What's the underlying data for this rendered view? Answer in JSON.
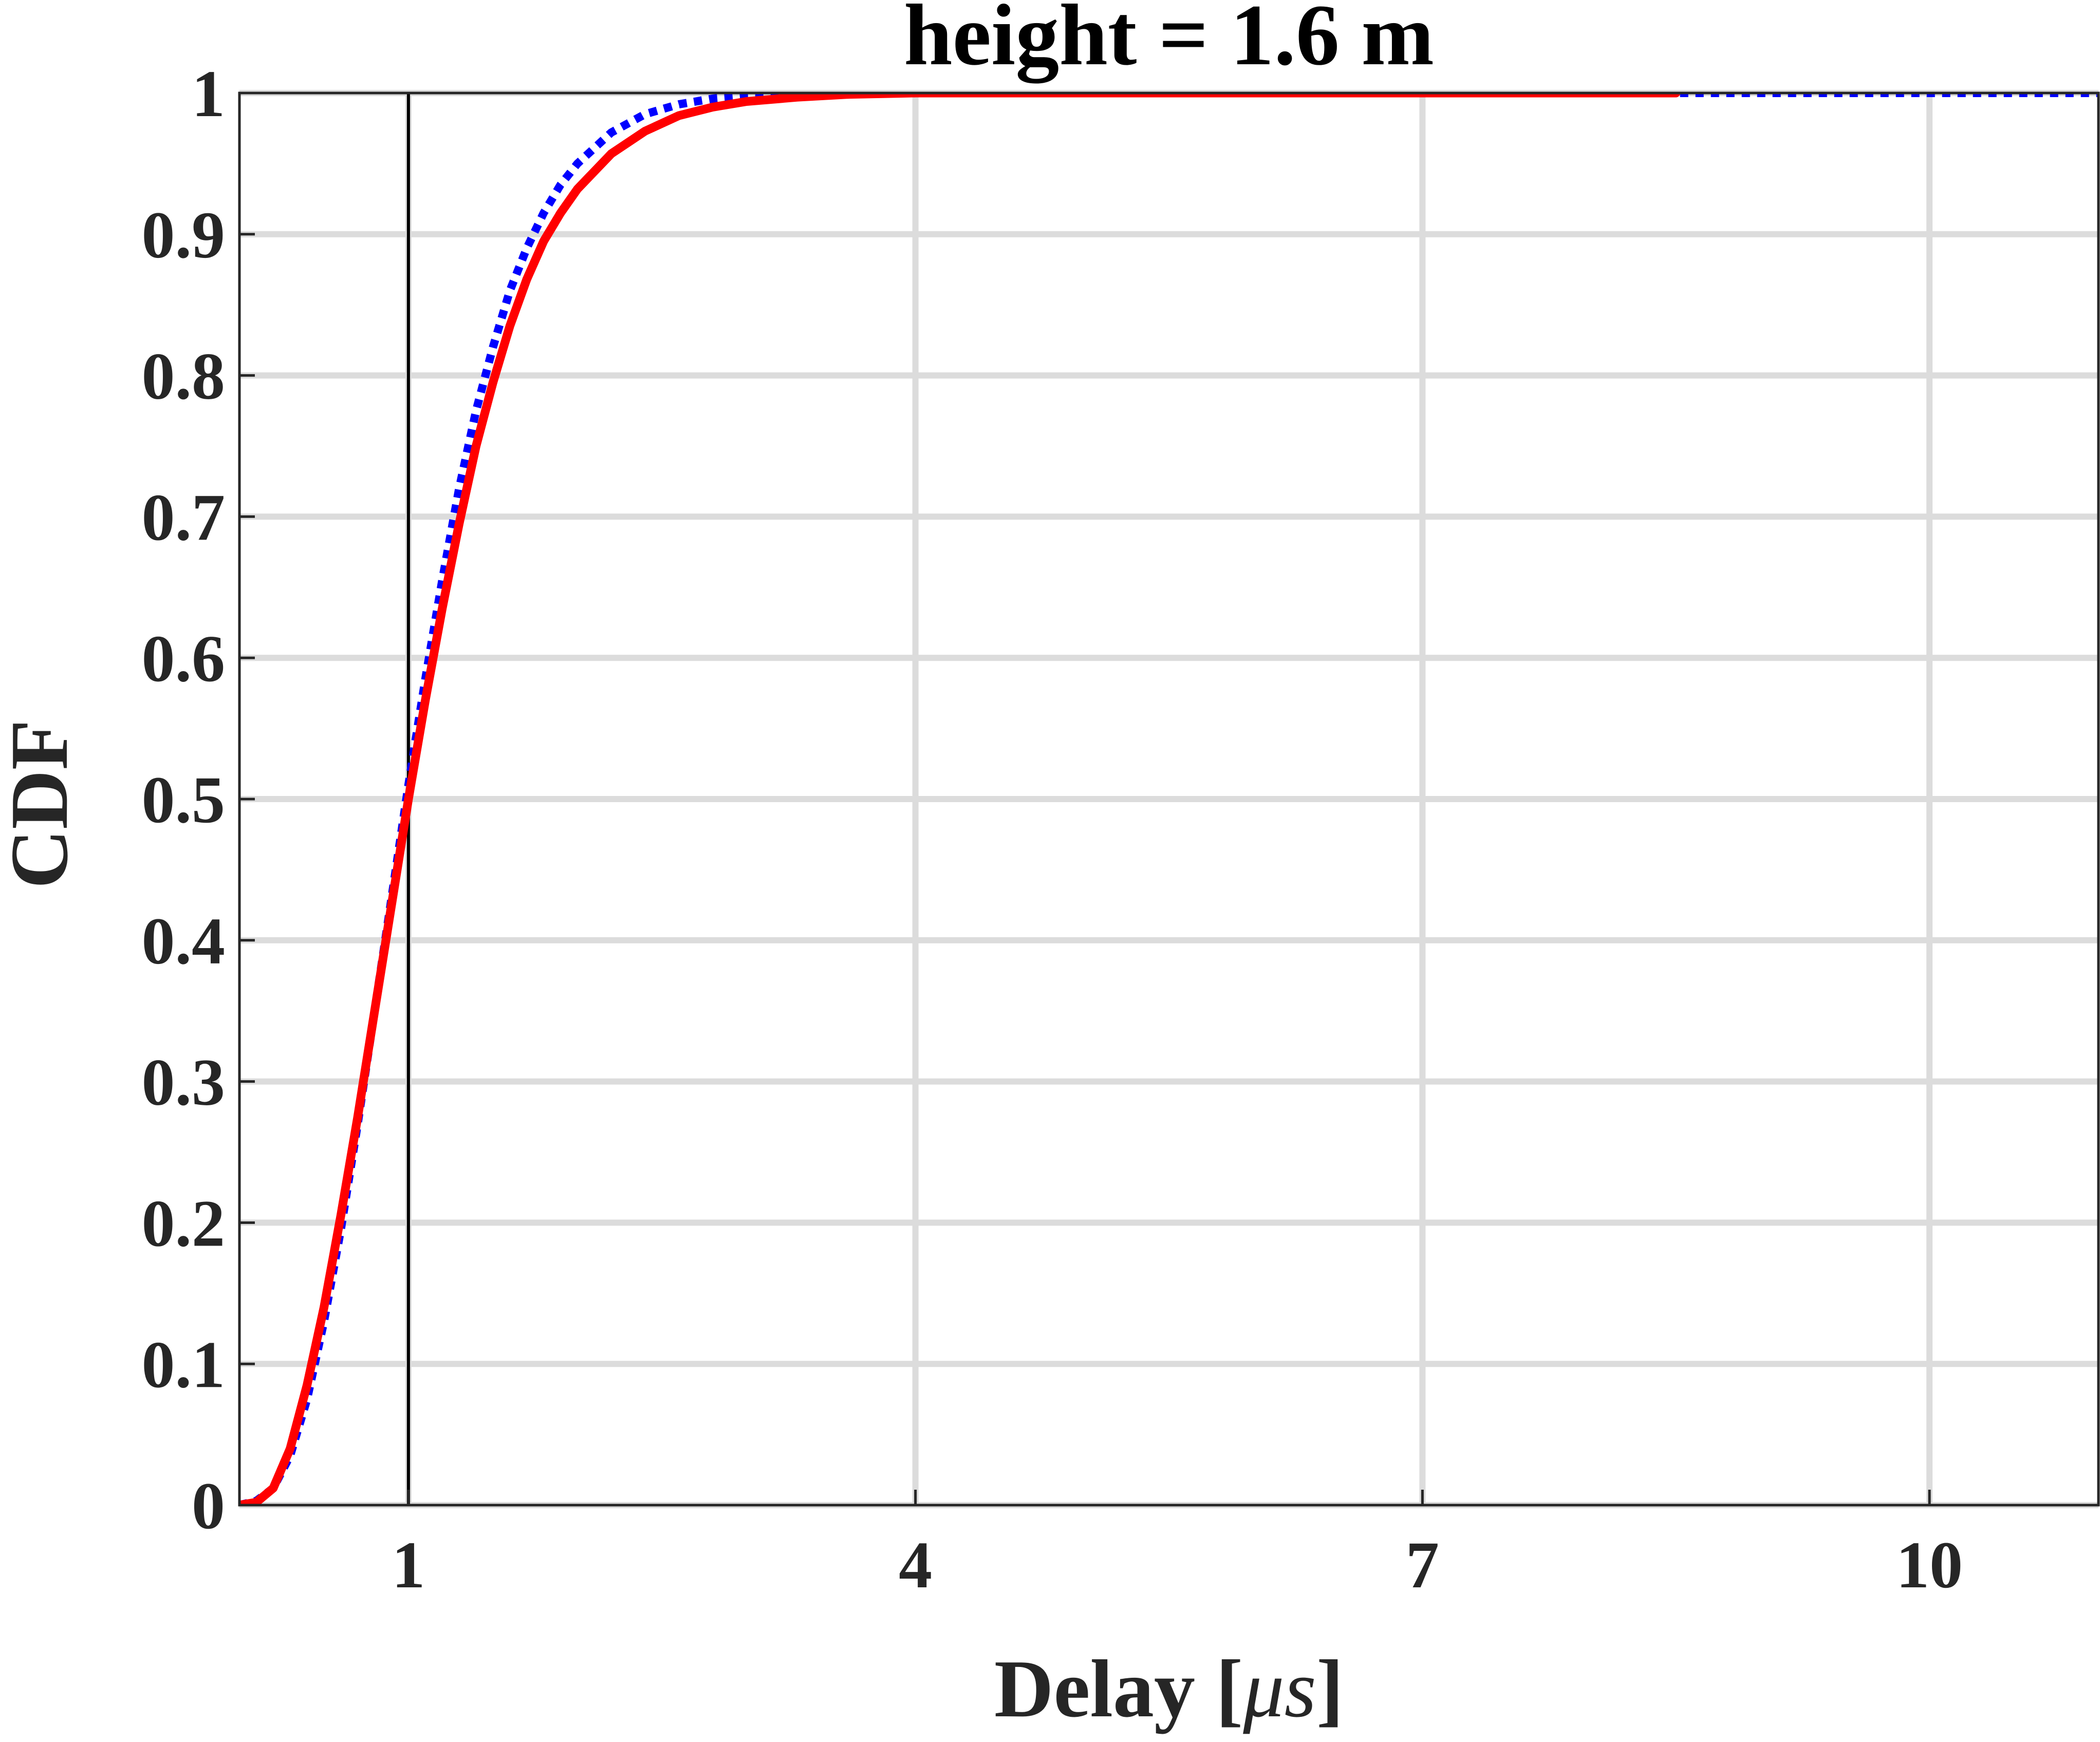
{
  "chart_data": {
    "type": "line",
    "title": "height = 1.6 m",
    "xlabel": "Delay",
    "xlabel_unit_open": "[",
    "xlabel_unit": "μs",
    "xlabel_unit_close": "]",
    "ylabel": "CDF",
    "xlim": [
      0.0,
      11.0
    ],
    "ylim": [
      0,
      1
    ],
    "x_ticks": [
      1,
      4,
      7,
      10
    ],
    "x_tick_labels": [
      "1",
      "4",
      "7",
      "10"
    ],
    "y_ticks": [
      0,
      0.1,
      0.2,
      0.3,
      0.4,
      0.5,
      0.6,
      0.7,
      0.8,
      0.9,
      1
    ],
    "y_tick_labels": [
      "0",
      "0.1",
      "0.2",
      "0.3",
      "0.4",
      "0.5",
      "0.6",
      "0.7",
      "0.8",
      "0.9",
      "1"
    ],
    "grid": true,
    "reference_line_x": 1.0,
    "series": [
      {
        "style": "dotted",
        "color": "#0000ff",
        "x": [
          0.0,
          0.1,
          0.2,
          0.3,
          0.4,
          0.5,
          0.6,
          0.7,
          0.8,
          0.9,
          1.0,
          1.1,
          1.2,
          1.3,
          1.4,
          1.5,
          1.6,
          1.7,
          1.8,
          1.9,
          2.0,
          2.2,
          2.4,
          2.6,
          2.8,
          3.0,
          3.3,
          3.6,
          4.0,
          5.0,
          7.0,
          9.0,
          11.0
        ],
        "y": [
          0.0,
          0.003,
          0.012,
          0.035,
          0.075,
          0.13,
          0.195,
          0.27,
          0.35,
          0.43,
          0.51,
          0.585,
          0.655,
          0.72,
          0.775,
          0.82,
          0.86,
          0.89,
          0.915,
          0.935,
          0.95,
          0.972,
          0.985,
          0.992,
          0.996,
          0.998,
          0.999,
          1.0,
          1.0,
          1.0,
          1.0,
          1.0,
          1.0
        ]
      },
      {
        "style": "solid",
        "color": "#ff0000",
        "x": [
          0.0,
          0.1,
          0.2,
          0.3,
          0.4,
          0.5,
          0.6,
          0.7,
          0.8,
          0.9,
          1.0,
          1.1,
          1.2,
          1.3,
          1.4,
          1.5,
          1.6,
          1.7,
          1.8,
          1.9,
          2.0,
          2.2,
          2.4,
          2.6,
          2.8,
          3.0,
          3.3,
          3.6,
          4.0,
          5.0,
          7.0,
          8.5
        ],
        "y": [
          0.0,
          0.002,
          0.012,
          0.04,
          0.085,
          0.14,
          0.205,
          0.275,
          0.35,
          0.425,
          0.5,
          0.57,
          0.635,
          0.695,
          0.75,
          0.795,
          0.835,
          0.868,
          0.895,
          0.915,
          0.932,
          0.957,
          0.973,
          0.984,
          0.99,
          0.994,
          0.997,
          0.999,
          1.0,
          1.0,
          1.0,
          1.0
        ]
      }
    ]
  }
}
